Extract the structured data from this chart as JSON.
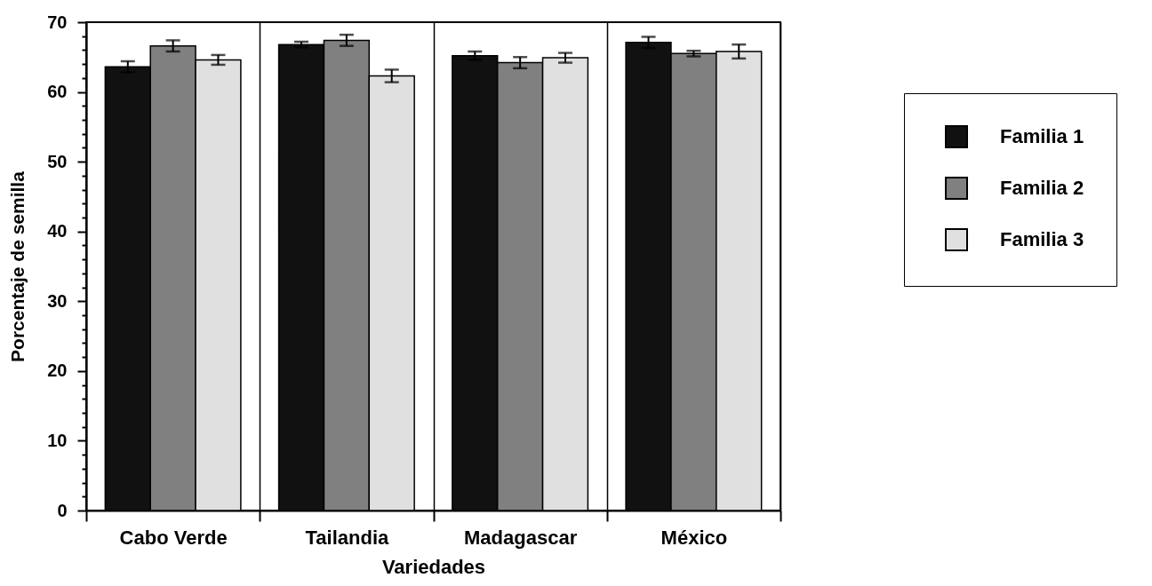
{
  "chart_data": {
    "type": "bar",
    "xlabel": "Variedades",
    "ylabel": "Porcentaje de semilla",
    "categories": [
      "Cabo Verde",
      "Tailandia",
      "Madagascar",
      "México"
    ],
    "series": [
      {
        "name": "Familia 1",
        "color": "#111111",
        "values": [
          63.6,
          66.8,
          65.2,
          67.1
        ],
        "errors": [
          0.8,
          0.4,
          0.6,
          0.8
        ]
      },
      {
        "name": "Familia 2",
        "color": "#808080",
        "values": [
          66.6,
          67.4,
          64.2,
          65.5
        ],
        "errors": [
          0.8,
          0.8,
          0.8,
          0.4
        ]
      },
      {
        "name": "Familia 3",
        "color": "#e0e0e0",
        "values": [
          64.6,
          62.3,
          64.9,
          65.8
        ],
        "errors": [
          0.7,
          0.9,
          0.7,
          1.0
        ]
      }
    ],
    "ylim": [
      0,
      70
    ],
    "yticks": [
      0,
      {
        "value": 2,
        "label": null
      },
      {
        "value": 4,
        "label": null
      },
      {
        "value": 6,
        "label": null
      },
      {
        "value": 8,
        "label": null
      },
      10,
      {
        "value": 12,
        "label": null
      },
      {
        "value": 14,
        "label": null
      },
      {
        "value": 16,
        "label": null
      },
      {
        "value": 18,
        "label": null
      },
      20,
      {
        "value": 22,
        "label": null
      },
      {
        "value": 24,
        "label": null
      },
      {
        "value": 26,
        "label": null
      },
      {
        "value": 28,
        "label": null
      },
      30,
      {
        "value": 32,
        "label": null
      },
      {
        "value": 34,
        "label": null
      },
      {
        "value": 36,
        "label": null
      },
      {
        "value": 38,
        "label": null
      },
      40,
      {
        "value": 42,
        "label": null
      },
      {
        "value": 44,
        "label": null
      },
      {
        "value": 46,
        "label": null
      },
      {
        "value": 48,
        "label": null
      },
      50,
      {
        "value": 52,
        "label": null
      },
      {
        "value": 54,
        "label": null
      },
      {
        "value": 56,
        "label": null
      },
      {
        "value": 58,
        "label": null
      },
      60,
      {
        "value": 62,
        "label": null
      },
      {
        "value": 64,
        "label": null
      },
      {
        "value": 66,
        "label": null
      },
      {
        "value": 68,
        "label": null
      },
      70
    ],
    "grid": "x",
    "legend": "right"
  }
}
